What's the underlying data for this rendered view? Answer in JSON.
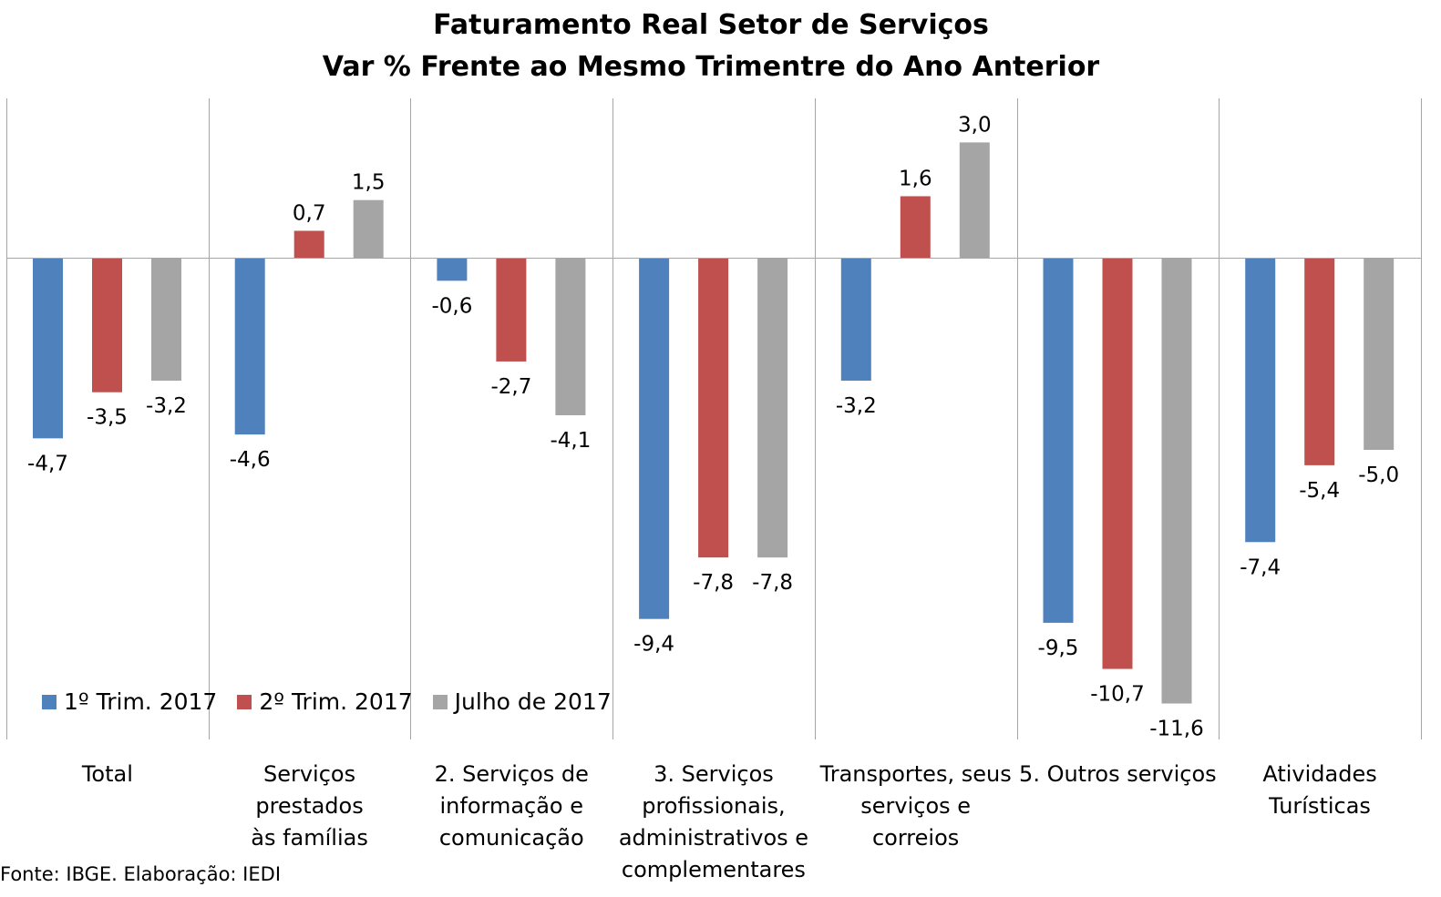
{
  "title": "Faturamento Real Setor de Serviços",
  "subtitle": "Var % Frente ao Mesmo Trimentre do Ano Anterior",
  "source": "Fonte: IBGE. Elaboração: IEDI",
  "colors": {
    "series1": "#4f81bd",
    "series2": "#c0504d",
    "series3": "#a5a5a5"
  },
  "chart_data": {
    "type": "bar",
    "title": "Faturamento Real Setor de Serviços",
    "subtitle": "Var % Frente ao Mesmo Trimentre do Ano Anterior",
    "categories": [
      "Total",
      "Serviços prestados às famílias",
      "2. Serviços de informação e comunicação",
      "3. Serviços profissionais, administrativos e complementares",
      "Transportes, seus serviços e correios",
      "5. Outros serviços",
      "Atividades Turísticas"
    ],
    "category_lines": [
      [
        "Total"
      ],
      [
        "Serviços prestados",
        "às famílias"
      ],
      [
        "2. Serviços de",
        "informação e",
        "comunicação"
      ],
      [
        "3. Serviços",
        "profissionais,",
        "administrativos e",
        "complementares"
      ],
      [
        "Transportes, seus",
        "serviços e correios"
      ],
      [
        "5. Outros serviços"
      ],
      [
        "Atividades",
        "Turísticas"
      ]
    ],
    "series": [
      {
        "name": "1º Trim. 2017",
        "values": [
          -4.7,
          -4.6,
          -0.6,
          -9.4,
          -3.2,
          -9.5,
          -7.4
        ],
        "labels": [
          "-4,7",
          "-4,6",
          "-0,6",
          "-9,4",
          "-3,2",
          "-9,5",
          "-7,4"
        ]
      },
      {
        "name": "2º Trim. 2017",
        "values": [
          -3.5,
          0.7,
          -2.7,
          -7.8,
          1.6,
          -10.7,
          -5.4
        ],
        "labels": [
          "-3,5",
          "0,7",
          "-2,7",
          "-7,8",
          "1,6",
          "-10,7",
          "-5,4"
        ]
      },
      {
        "name": "Julho de 2017",
        "values": [
          -3.2,
          1.5,
          -4.1,
          -7.8,
          3.0,
          -11.6,
          -5.0
        ],
        "labels": [
          "-3,2",
          "1,5",
          "-4,1",
          "-7,8",
          "3,0",
          "-11,6",
          "-5,0"
        ]
      }
    ],
    "ylim": [
      -12.5,
      4.0
    ],
    "legend_position": "bottom-left",
    "grid": false,
    "category_separators": true
  }
}
